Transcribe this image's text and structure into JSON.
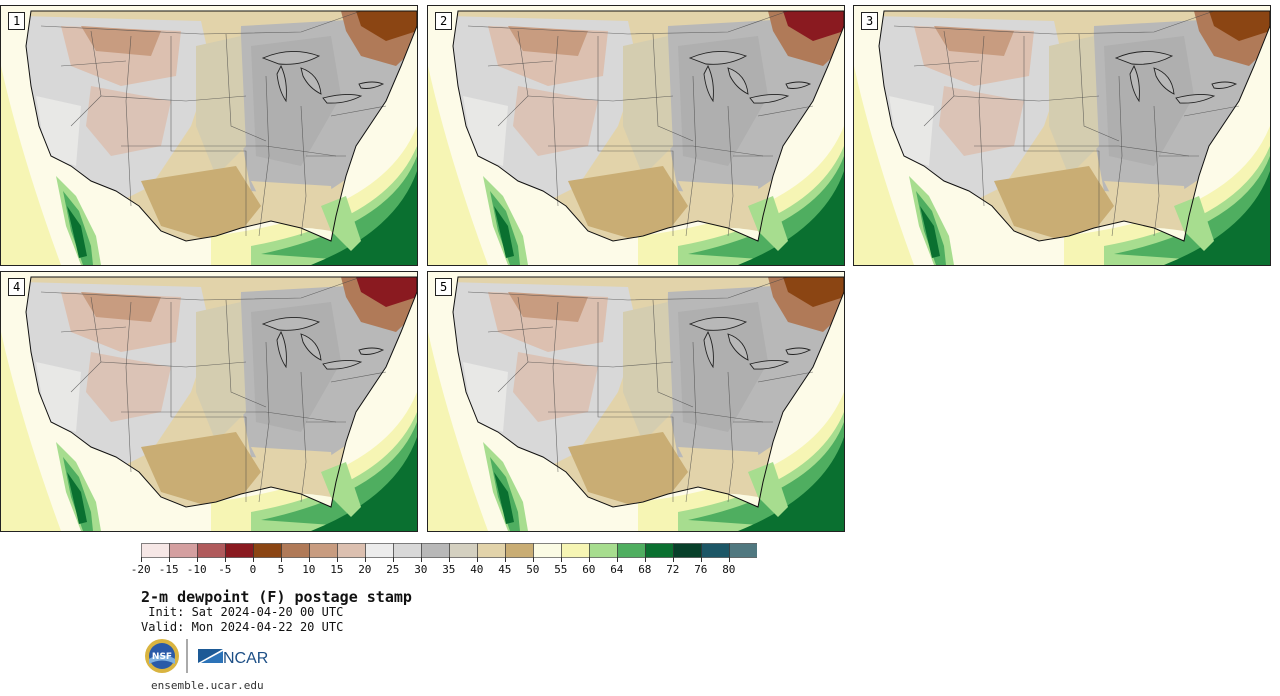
{
  "title": "2-m dewpoint (F) postage stamp",
  "init": " Init: Sat 2024-04-20 00 UTC",
  "valid": "Valid: Mon 2024-04-22 20 UTC",
  "url": "ensemble.ucar.edu",
  "logos": {
    "nsf": "NSF",
    "ncar": "NCAR"
  },
  "members": [
    {
      "label": "1"
    },
    {
      "label": "2"
    },
    {
      "label": "3"
    },
    {
      "label": "4"
    },
    {
      "label": "5"
    }
  ],
  "colorbar": {
    "ticks": [
      "-20",
      "-15",
      "-10",
      "-5",
      "0",
      "5",
      "10",
      "15",
      "20",
      "25",
      "30",
      "35",
      "40",
      "45",
      "50",
      "55",
      "60",
      "64",
      "68",
      "72",
      "76",
      "80"
    ],
    "colors": [
      "#f6e7e6",
      "#d49fa0",
      "#b05a5c",
      "#8a1a20",
      "#8b4513",
      "#b07a58",
      "#c89c80",
      "#dcc0b0",
      "#ececec",
      "#d8d8d8",
      "#b8b8b8",
      "#d4d0c0",
      "#e2d3aa",
      "#c9ad74",
      "#fbfbe4",
      "#f6f5b4",
      "#a7dd8f",
      "#4fae60",
      "#0a7030",
      "#07402a",
      "#1c5666",
      "#507880"
    ]
  }
}
